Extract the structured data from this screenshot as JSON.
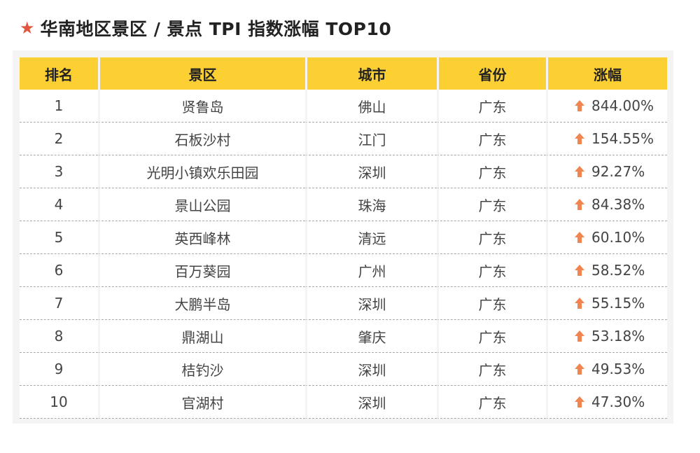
{
  "title": "华南地区景区 / 景点 TPI 指数涨幅 TOP10",
  "colors": {
    "header_bg": "#fcd033",
    "star": "#e2553e",
    "arrow": "#f2854f"
  },
  "table": {
    "headers": [
      "排名",
      "景区",
      "城市",
      "省份",
      "涨幅"
    ],
    "rows": [
      {
        "rank": "1",
        "spot": "贤鲁岛",
        "city": "佛山",
        "province": "广东",
        "change": "844.00%"
      },
      {
        "rank": "2",
        "spot": "石板沙村",
        "city": "江门",
        "province": "广东",
        "change": "154.55%"
      },
      {
        "rank": "3",
        "spot": "光明小镇欢乐田园",
        "city": "深圳",
        "province": "广东",
        "change": "92.27%"
      },
      {
        "rank": "4",
        "spot": "景山公园",
        "city": "珠海",
        "province": "广东",
        "change": "84.38%"
      },
      {
        "rank": "5",
        "spot": "英西峰林",
        "city": "清远",
        "province": "广东",
        "change": "60.10%"
      },
      {
        "rank": "6",
        "spot": "百万葵园",
        "city": "广州",
        "province": "广东",
        "change": "58.52%"
      },
      {
        "rank": "7",
        "spot": "大鹏半岛",
        "city": "深圳",
        "province": "广东",
        "change": "55.15%"
      },
      {
        "rank": "8",
        "spot": "鼎湖山",
        "city": "肇庆",
        "province": "广东",
        "change": "53.18%"
      },
      {
        "rank": "9",
        "spot": "桔钓沙",
        "city": "深圳",
        "province": "广东",
        "change": "49.53%"
      },
      {
        "rank": "10",
        "spot": "官湖村",
        "city": "深圳",
        "province": "广东",
        "change": "47.30%"
      }
    ]
  }
}
